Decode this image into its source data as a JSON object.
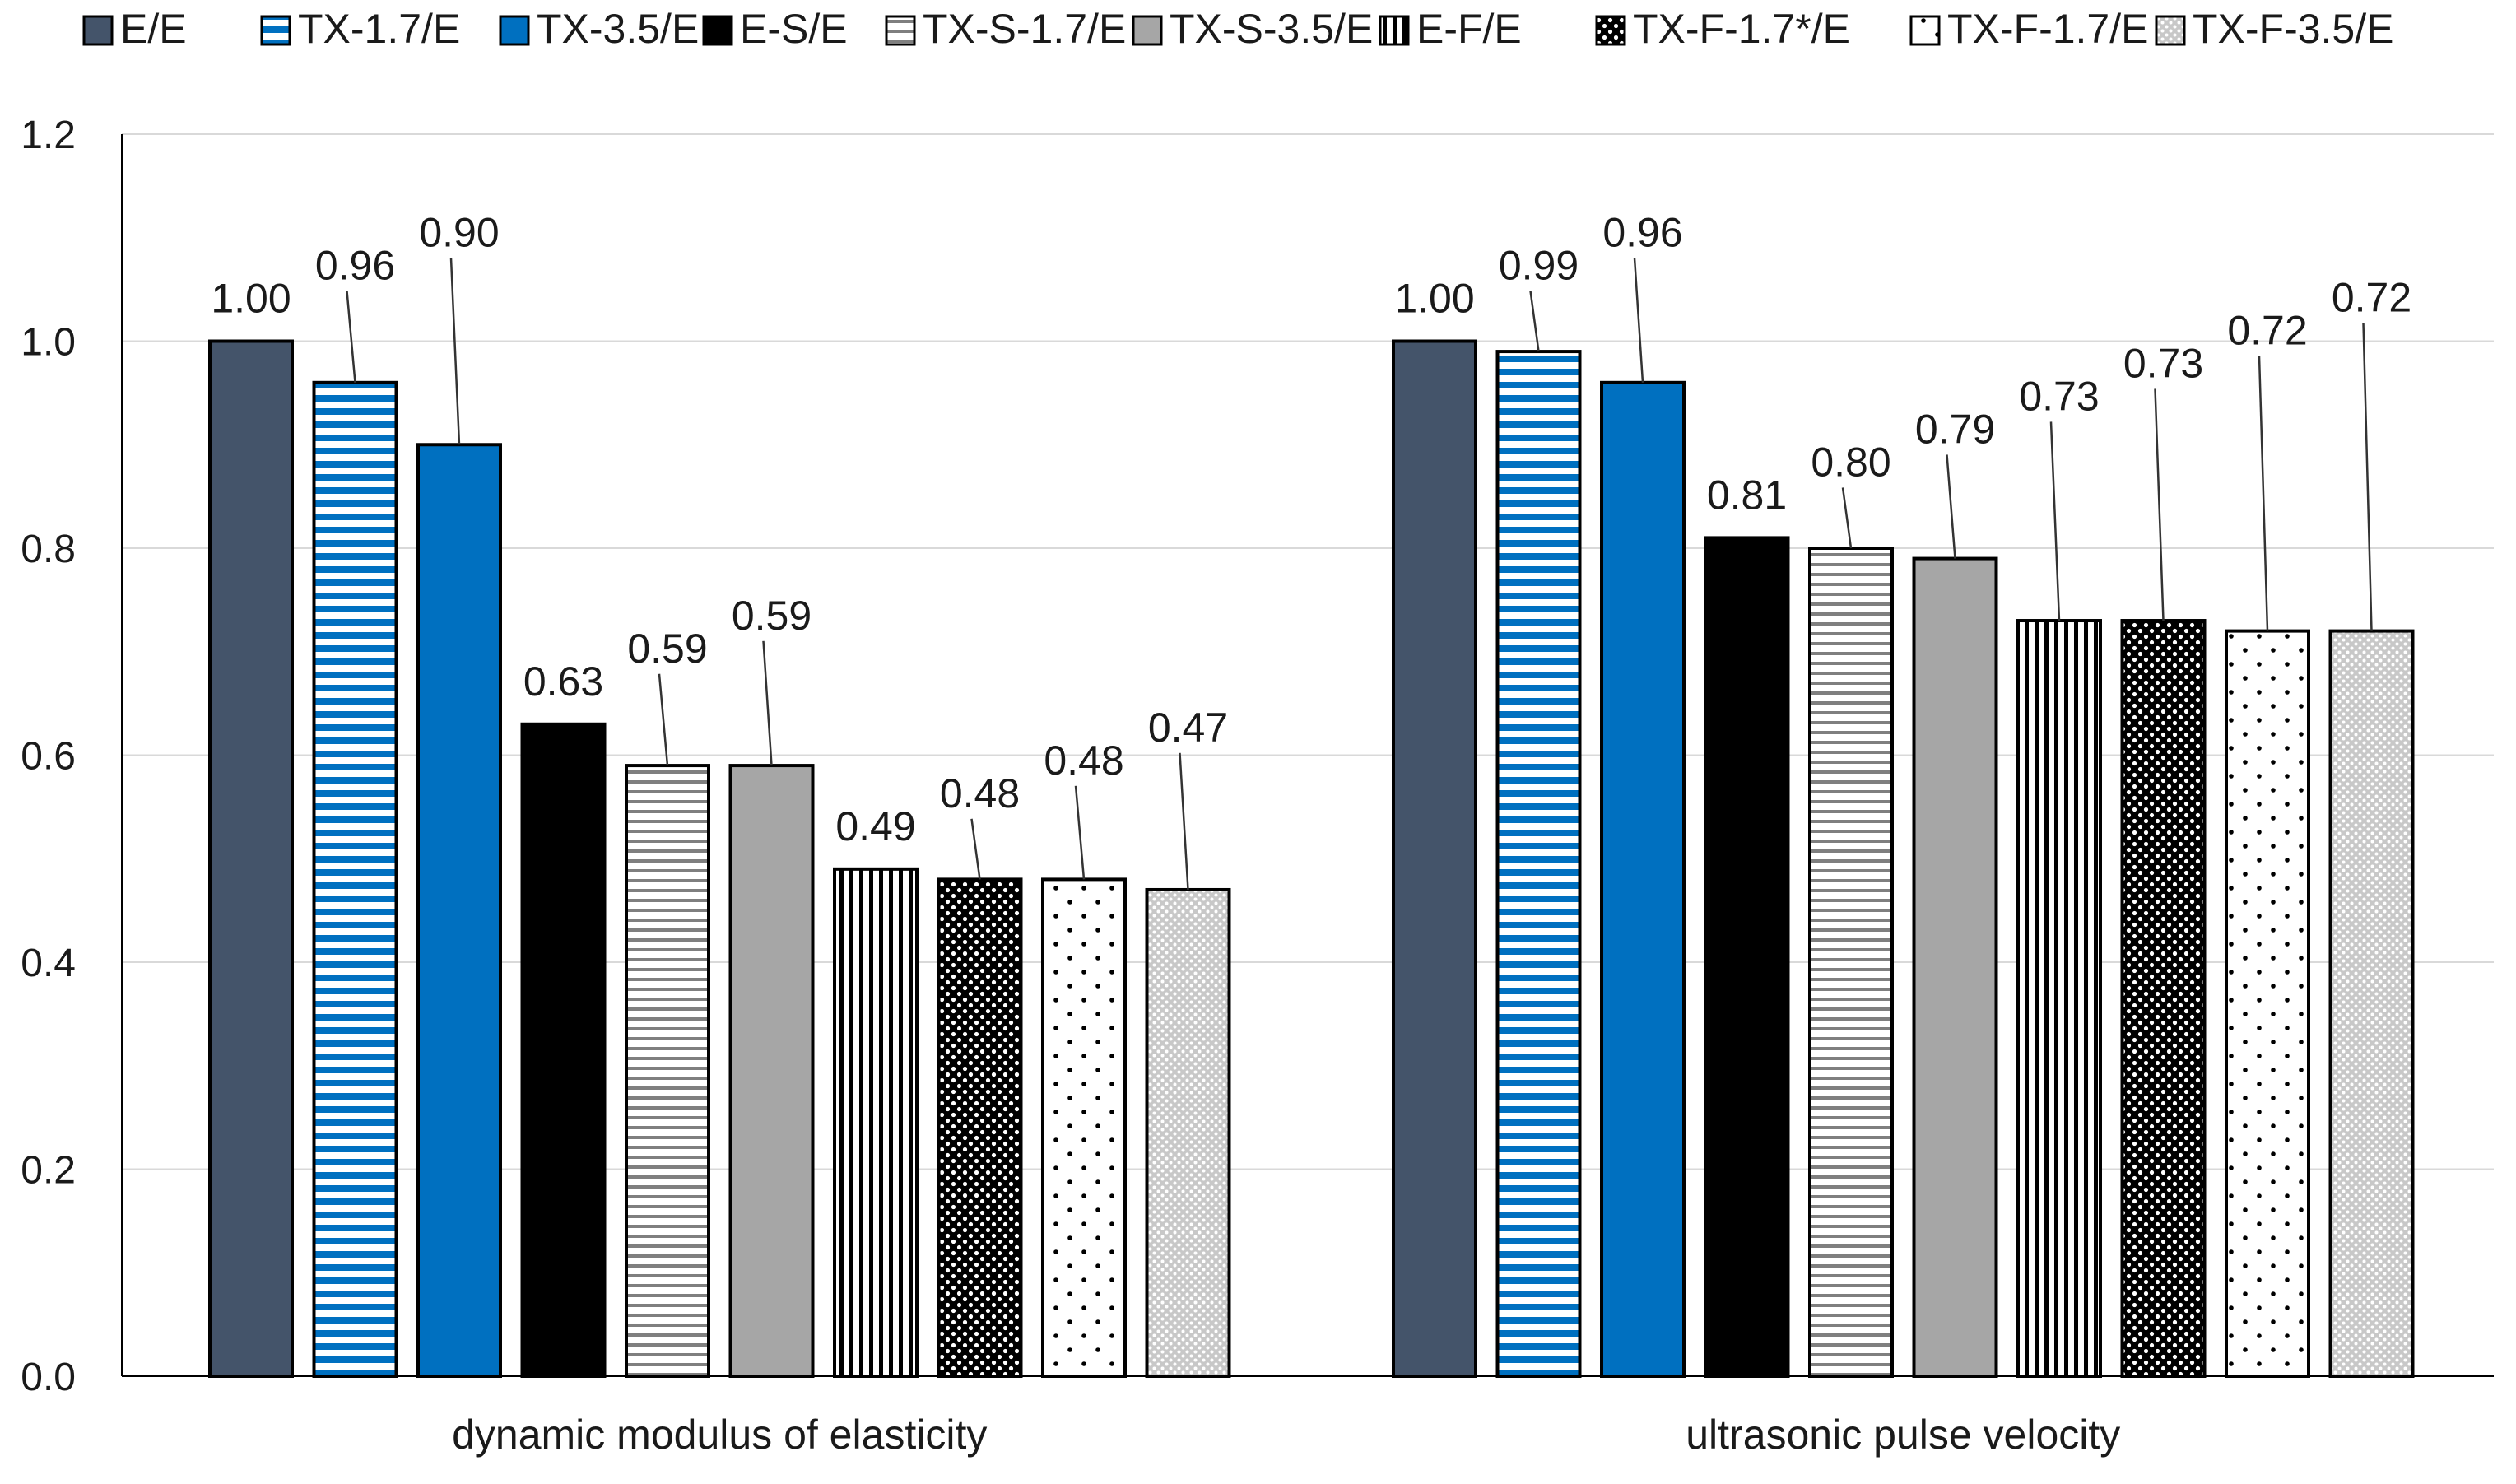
{
  "chart_data": {
    "type": "bar",
    "title": "",
    "xlabel": "",
    "ylabel": "",
    "ylim": [
      0,
      1.2
    ],
    "yticks": [
      "0.0",
      "0.2",
      "0.4",
      "0.6",
      "0.8",
      "1.0",
      "1.2"
    ],
    "grid": true,
    "legend_position": "top",
    "categories": [
      "dynamic modulus of elasticity",
      "ultrasonic pulse velocity"
    ],
    "series": [
      {
        "name": "E/E",
        "values": [
          1.0,
          1.0
        ],
        "labels": [
          "1.00",
          "1.00"
        ],
        "pattern": "solid",
        "color": "#44546a"
      },
      {
        "name": "TX-1.7/E",
        "values": [
          0.96,
          0.99
        ],
        "labels": [
          "0.96",
          "0.99"
        ],
        "pattern": "hstripe-blue",
        "color": "#0070c0"
      },
      {
        "name": "TX-3.5/E",
        "values": [
          0.9,
          0.96
        ],
        "labels": [
          "0.90",
          "0.96"
        ],
        "pattern": "solid",
        "color": "#0070c0"
      },
      {
        "name": "E-S/E",
        "values": [
          0.63,
          0.81
        ],
        "labels": [
          "0.63",
          "0.81"
        ],
        "pattern": "solid",
        "color": "#000000"
      },
      {
        "name": "TX-S-1.7/E",
        "values": [
          0.59,
          0.8
        ],
        "labels": [
          "0.59",
          "0.80"
        ],
        "pattern": "hstripe-gray",
        "color": "#a6a6a6"
      },
      {
        "name": "TX-S-3.5/E",
        "values": [
          0.59,
          0.79
        ],
        "labels": [
          "0.59",
          "0.79"
        ],
        "pattern": "solid",
        "color": "#a6a6a6"
      },
      {
        "name": "E-F/E",
        "values": [
          0.49,
          0.73
        ],
        "labels": [
          "0.49",
          "0.73"
        ],
        "pattern": "vstripe",
        "color": "#000000"
      },
      {
        "name": "TX-F-1.7*/E",
        "values": [
          0.48,
          0.73
        ],
        "labels": [
          "0.48",
          "0.73"
        ],
        "pattern": "dense-dots",
        "color": "#000000"
      },
      {
        "name": "TX-F-1.7/E",
        "values": [
          0.48,
          0.72
        ],
        "labels": [
          "0.48",
          "0.72"
        ],
        "pattern": "sparse-dots",
        "color": "#ffffff"
      },
      {
        "name": "TX-F-3.5/E",
        "values": [
          0.47,
          0.72
        ],
        "labels": [
          "0.47",
          "0.72"
        ],
        "pattern": "light-dots",
        "color": "#bfbfbf"
      }
    ]
  }
}
